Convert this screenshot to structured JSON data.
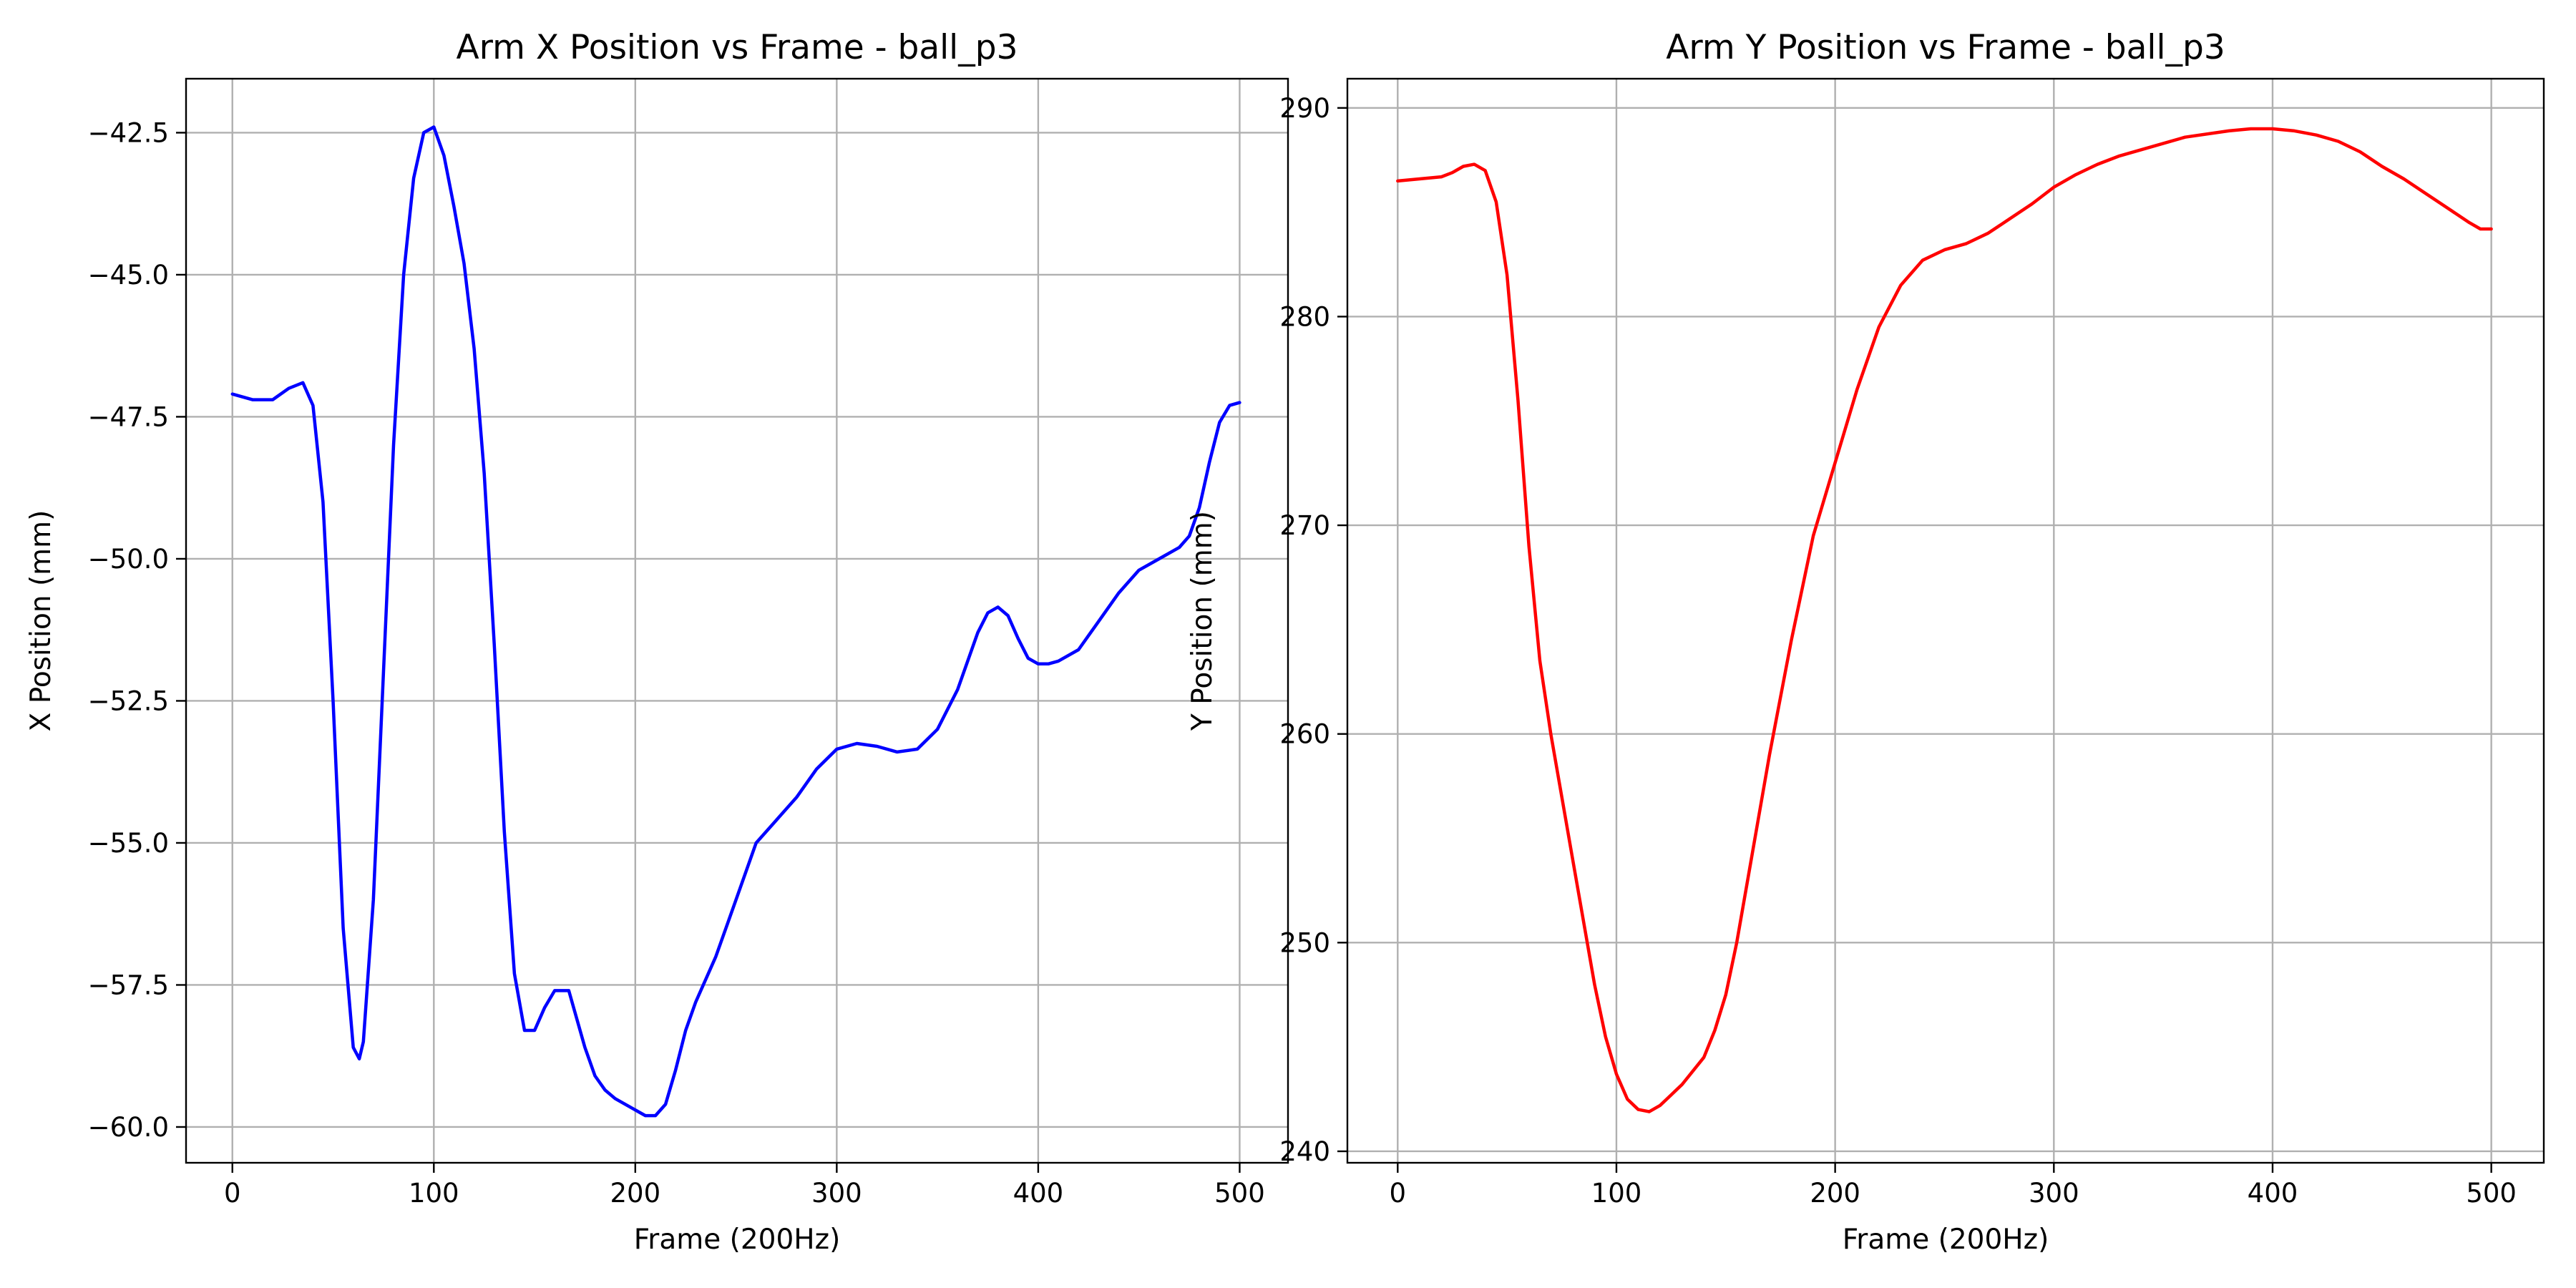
{
  "chart_data": [
    {
      "type": "line",
      "title": "Arm X Position vs Frame - ball_p3",
      "xlabel": "Frame (200Hz)",
      "ylabel": "X Position (mm)",
      "xlim": [
        -23,
        524
      ],
      "ylim": [
        -60.63,
        -41.55
      ],
      "xticks": [
        0,
        100,
        200,
        300,
        400,
        500
      ],
      "yticks": [
        -60.0,
        -57.5,
        -55.0,
        -52.5,
        -50.0,
        -47.5,
        -45.0,
        -42.5
      ],
      "xtick_labels": [
        "0",
        "100",
        "200",
        "300",
        "400",
        "500"
      ],
      "ytick_labels": [
        "−60.0",
        "−57.5",
        "−55.0",
        "−52.5",
        "−50.0",
        "−47.5",
        "−45.0",
        "−42.5"
      ],
      "grid": true,
      "series": [
        {
          "color": "#0000ff",
          "x": [
            0,
            10,
            20,
            28,
            35,
            40,
            45,
            50,
            55,
            60,
            63,
            65,
            70,
            75,
            80,
            85,
            90,
            95,
            100,
            105,
            110,
            115,
            120,
            125,
            130,
            135,
            140,
            145,
            150,
            155,
            160,
            167,
            175,
            180,
            185,
            190,
            200,
            205,
            210,
            215,
            220,
            225,
            230,
            240,
            250,
            260,
            270,
            280,
            290,
            300,
            310,
            320,
            330,
            340,
            350,
            360,
            370,
            375,
            380,
            385,
            390,
            395,
            400,
            405,
            410,
            420,
            430,
            440,
            450,
            460,
            470,
            475,
            480,
            485,
            490,
            495,
            500
          ],
          "y": [
            -47.1,
            -47.2,
            -47.2,
            -47.0,
            -46.9,
            -47.3,
            -49.0,
            -52.5,
            -56.5,
            -58.6,
            -58.8,
            -58.5,
            -56.0,
            -52.0,
            -48.0,
            -45.0,
            -43.3,
            -42.5,
            -42.4,
            -42.9,
            -43.8,
            -44.8,
            -46.3,
            -48.5,
            -51.5,
            -54.8,
            -57.3,
            -58.3,
            -58.3,
            -57.9,
            -57.6,
            -57.6,
            -58.6,
            -59.1,
            -59.35,
            -59.5,
            -59.7,
            -59.8,
            -59.8,
            -59.6,
            -59.0,
            -58.3,
            -57.8,
            -57.0,
            -56.0,
            -55.0,
            -54.6,
            -54.2,
            -53.7,
            -53.35,
            -53.25,
            -53.3,
            -53.4,
            -53.35,
            -53.0,
            -52.3,
            -51.3,
            -50.95,
            -50.85,
            -51.0,
            -51.4,
            -51.75,
            -51.85,
            -51.85,
            -51.8,
            -51.6,
            -51.1,
            -50.6,
            -50.2,
            -50.0,
            -49.8,
            -49.6,
            -49.1,
            -48.3,
            -47.6,
            -47.3,
            -47.25
          ]
        }
      ]
    },
    {
      "type": "line",
      "title": "Arm Y Position vs Frame - ball_p3",
      "xlabel": "Frame (200Hz)",
      "ylabel": "Y Position (mm)",
      "xlim": [
        -23,
        524
      ],
      "ylim": [
        239.45,
        291.4
      ],
      "xticks": [
        0,
        100,
        200,
        300,
        400,
        500
      ],
      "yticks": [
        240,
        250,
        260,
        270,
        280,
        290
      ],
      "xtick_labels": [
        "0",
        "100",
        "200",
        "300",
        "400",
        "500"
      ],
      "ytick_labels": [
        "240",
        "250",
        "260",
        "270",
        "280",
        "290"
      ],
      "grid": true,
      "series": [
        {
          "color": "#ff0000",
          "x": [
            0,
            10,
            20,
            25,
            30,
            35,
            40,
            45,
            50,
            55,
            60,
            65,
            70,
            80,
            90,
            95,
            100,
            105,
            110,
            115,
            120,
            125,
            130,
            140,
            145,
            150,
            155,
            160,
            170,
            180,
            190,
            200,
            210,
            220,
            230,
            240,
            250,
            260,
            270,
            280,
            290,
            300,
            310,
            320,
            330,
            340,
            360,
            380,
            390,
            400,
            410,
            420,
            430,
            440,
            450,
            460,
            470,
            480,
            490,
            495,
            500
          ],
          "y": [
            286.5,
            286.6,
            286.7,
            286.9,
            287.2,
            287.3,
            287.0,
            285.5,
            282.0,
            276.0,
            269.0,
            263.5,
            260.0,
            254.0,
            248.0,
            245.5,
            243.7,
            242.5,
            242.0,
            241.9,
            242.2,
            242.7,
            243.2,
            244.5,
            245.8,
            247.5,
            250.0,
            253.0,
            259.0,
            264.5,
            269.5,
            273.0,
            276.5,
            279.5,
            281.5,
            282.7,
            283.2,
            283.5,
            284.0,
            284.7,
            285.4,
            286.2,
            286.8,
            287.3,
            287.7,
            288.0,
            288.6,
            288.9,
            289.0,
            289.0,
            288.9,
            288.7,
            288.4,
            287.9,
            287.2,
            286.6,
            285.9,
            285.2,
            284.5,
            284.2,
            284.2
          ]
        }
      ]
    }
  ]
}
